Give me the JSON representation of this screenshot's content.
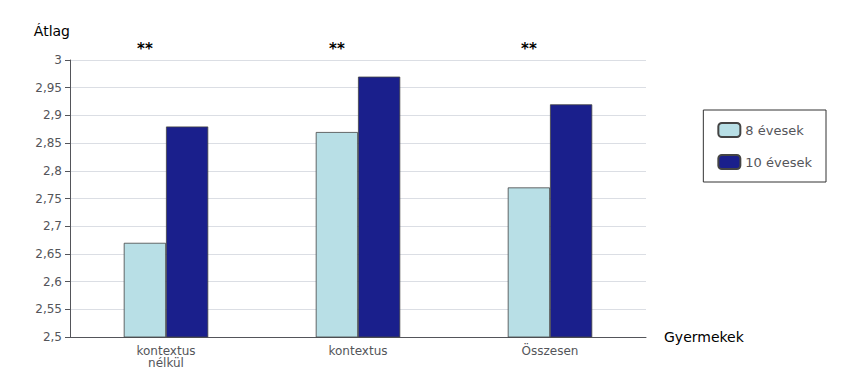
{
  "chart_data": {
    "type": "bar",
    "ylabel": "Átlag",
    "xlabel": "Gyermekek",
    "categories": [
      "kontextus\nnélkül",
      "kontextus",
      "Összesen"
    ],
    "series": [
      {
        "name": "8 évesek",
        "color": "#b8dfe6",
        "values": [
          2.67,
          2.87,
          2.77
        ]
      },
      {
        "name": "10 évesek",
        "color": "#1a1f8c",
        "values": [
          2.88,
          2.97,
          2.92
        ]
      }
    ],
    "ylim": [
      2.5,
      3.0
    ],
    "yticks": [
      {
        "value": 2.5,
        "label": "2,5"
      },
      {
        "value": 2.55,
        "label": "2,55"
      },
      {
        "value": 2.6,
        "label": "2,6"
      },
      {
        "value": 2.65,
        "label": "2,65"
      },
      {
        "value": 2.7,
        "label": "2,7"
      },
      {
        "value": 2.75,
        "label": "2,75"
      },
      {
        "value": 2.8,
        "label": "2,8"
      },
      {
        "value": 2.85,
        "label": "2,85"
      },
      {
        "value": 2.9,
        "label": "2,9"
      },
      {
        "value": 2.95,
        "label": "2,95"
      },
      3
    ],
    "annotations": [
      {
        "text": "**",
        "x": "kontextus\nnélkül"
      },
      {
        "text": "**",
        "x": "kontextus"
      },
      {
        "text": "**",
        "x": "Összesen"
      }
    ],
    "grid": true,
    "legend": "right"
  }
}
